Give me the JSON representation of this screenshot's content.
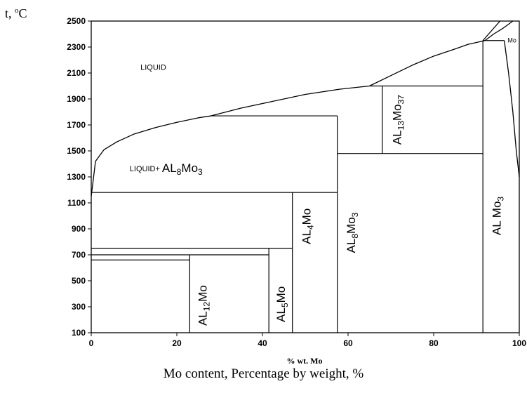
{
  "chart_data": {
    "type": "line",
    "title": "",
    "ylabel_prefix": "t, ",
    "ylabel_degree": "o",
    "ylabel_unit": "C",
    "xlabel": "% wt. Mo",
    "caption": "Mo content, Percentage by weight, %",
    "xlim": [
      0,
      100
    ],
    "ylim": [
      100,
      2500
    ],
    "x_ticks": [
      0,
      20,
      40,
      60,
      80,
      100
    ],
    "y_ticks": [
      100,
      300,
      500,
      700,
      900,
      1100,
      1300,
      1500,
      1700,
      1900,
      2100,
      2300,
      2500
    ],
    "grid": false,
    "liquidus_curve": [
      [
        0,
        1150
      ],
      [
        1,
        1420
      ],
      [
        3,
        1510
      ],
      [
        6,
        1570
      ],
      [
        10,
        1630
      ],
      [
        15,
        1680
      ],
      [
        20,
        1720
      ],
      [
        25,
        1755
      ],
      [
        28,
        1770
      ],
      [
        35,
        1830
      ],
      [
        40,
        1865
      ],
      [
        50,
        1935
      ],
      [
        58,
        1975
      ],
      [
        65,
        2000
      ],
      [
        70,
        2080
      ],
      [
        75,
        2160
      ],
      [
        80,
        2230
      ],
      [
        85,
        2285
      ],
      [
        88,
        2320
      ],
      [
        92,
        2350
      ],
      [
        94,
        2400
      ],
      [
        96,
        2440
      ],
      [
        98.5,
        2500
      ]
    ],
    "upper_left_line": [
      [
        91.5,
        2350
      ],
      [
        95.5,
        2500
      ]
    ],
    "mo_solvus_curve": [
      [
        96.5,
        2350
      ],
      [
        97.5,
        2100
      ],
      [
        98.5,
        1800
      ],
      [
        99.3,
        1500
      ],
      [
        100,
        1300
      ]
    ],
    "horizontals": [
      {
        "x1": 28,
        "x2": 57.5,
        "y": 1770
      },
      {
        "x1": 65,
        "x2": 91.5,
        "y": 2000
      },
      {
        "x1": 57.5,
        "x2": 91.5,
        "y": 1480
      },
      {
        "x1": 0,
        "x2": 57.5,
        "y": 1180
      },
      {
        "x1": 0,
        "x2": 47,
        "y": 750
      },
      {
        "x1": 0,
        "x2": 41.5,
        "y": 700
      },
      {
        "x1": 0,
        "x2": 23,
        "y": 660
      },
      {
        "x1": 91.5,
        "x2": 96.5,
        "y": 2350
      }
    ],
    "verticals": [
      {
        "x": 23,
        "y1": 100,
        "y2": 700
      },
      {
        "x": 41.5,
        "y1": 100,
        "y2": 750
      },
      {
        "x": 47,
        "y1": 100,
        "y2": 1180
      },
      {
        "x": 57.5,
        "y1": 100,
        "y2": 1770
      },
      {
        "x": 68,
        "y1": 1480,
        "y2": 2000
      },
      {
        "x": 91.5,
        "y1": 100,
        "y2": 2350
      }
    ],
    "phase_labels": [
      {
        "id": "liquid",
        "parts": [
          {
            "t": "LIQUID"
          }
        ],
        "x": 14.5,
        "y": 2140,
        "size": 11,
        "rotate": false
      },
      {
        "id": "liquid-al8mo3",
        "parts": [
          {
            "t": "LIQUID+ ",
            "size": 11
          },
          {
            "t": "AL"
          },
          {
            "t": "8",
            "sub": true
          },
          {
            "t": "Mo"
          },
          {
            "t": "3",
            "sub": true
          }
        ],
        "x": 17.5,
        "y": 1360,
        "size": 17,
        "rotate": false
      },
      {
        "id": "al12mo",
        "parts": [
          {
            "t": "AL"
          },
          {
            "t": "12",
            "sub": true
          },
          {
            "t": "Mo"
          }
        ],
        "x": 26.3,
        "y": 310,
        "size": 17,
        "rotate": true
      },
      {
        "id": "al5mo",
        "parts": [
          {
            "t": "AL"
          },
          {
            "t": "5",
            "sub": true
          },
          {
            "t": "Mo"
          }
        ],
        "x": 44.6,
        "y": 320,
        "size": 17,
        "rotate": true
      },
      {
        "id": "al4mo",
        "parts": [
          {
            "t": "AL"
          },
          {
            "t": "4",
            "sub": true
          },
          {
            "t": "Mo"
          }
        ],
        "x": 50.6,
        "y": 920,
        "size": 17,
        "rotate": true
      },
      {
        "id": "al8mo3",
        "parts": [
          {
            "t": "AL"
          },
          {
            "t": "8",
            "sub": true
          },
          {
            "t": "Mo"
          },
          {
            "t": "3",
            "sub": true
          }
        ],
        "x": 61.0,
        "y": 870,
        "size": 17,
        "rotate": true
      },
      {
        "id": "al13mo37",
        "parts": [
          {
            "t": "AL"
          },
          {
            "t": "13",
            "sub": true
          },
          {
            "t": "Mo"
          },
          {
            "t": "37",
            "sub": true
          }
        ],
        "x": 71.7,
        "y": 1740,
        "size": 17,
        "rotate": true
      },
      {
        "id": "almo3",
        "parts": [
          {
            "t": "AL"
          },
          {
            "t": " Mo"
          },
          {
            "t": "3",
            "sub": true
          }
        ],
        "x": 95.0,
        "y": 1000,
        "size": 17,
        "rotate": true
      },
      {
        "id": "mo",
        "parts": [
          {
            "t": "Mo"
          }
        ],
        "x": 98.3,
        "y": 2345,
        "size": 9,
        "rotate": false
      }
    ]
  }
}
